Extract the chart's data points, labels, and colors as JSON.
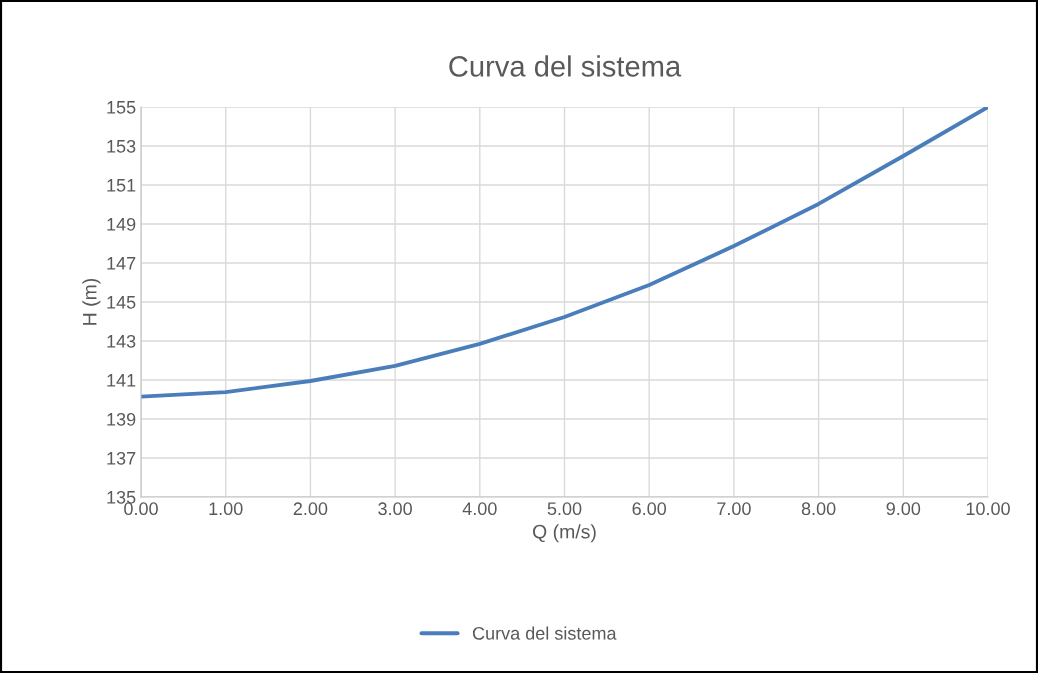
{
  "chart_data": {
    "type": "line",
    "title": "Curva del sistema",
    "xlabel": "Q (m/s)",
    "ylabel": "H (m)",
    "x": [
      0,
      1,
      2,
      3,
      4,
      5,
      6,
      7,
      8,
      9,
      10
    ],
    "series": [
      {
        "name": "Curva del sistema",
        "color": "#4a7ebb",
        "values": [
          140.15,
          140.38,
          140.95,
          141.72,
          142.85,
          144.23,
          145.87,
          147.87,
          150.03,
          152.49,
          155.0
        ]
      }
    ],
    "xlim": [
      0,
      10
    ],
    "xticks": [
      {
        "value": 0,
        "label": "0.00"
      },
      {
        "value": 1,
        "label": "1.00"
      },
      {
        "value": 2,
        "label": "2.00"
      },
      {
        "value": 3,
        "label": "3.00"
      },
      {
        "value": 4,
        "label": "4.00"
      },
      {
        "value": 5,
        "label": "5.00"
      },
      {
        "value": 6,
        "label": "6.00"
      },
      {
        "value": 7,
        "label": "7.00"
      },
      {
        "value": 8,
        "label": "8.00"
      },
      {
        "value": 9,
        "label": "9.00"
      },
      {
        "value": 10,
        "label": "10.00"
      }
    ],
    "ylim": [
      135,
      155
    ],
    "yticks": [
      135,
      137,
      139,
      141,
      143,
      145,
      147,
      149,
      151,
      153,
      155
    ],
    "grid": true,
    "legend": "bottom",
    "marker": "none",
    "line_style": "solid"
  }
}
